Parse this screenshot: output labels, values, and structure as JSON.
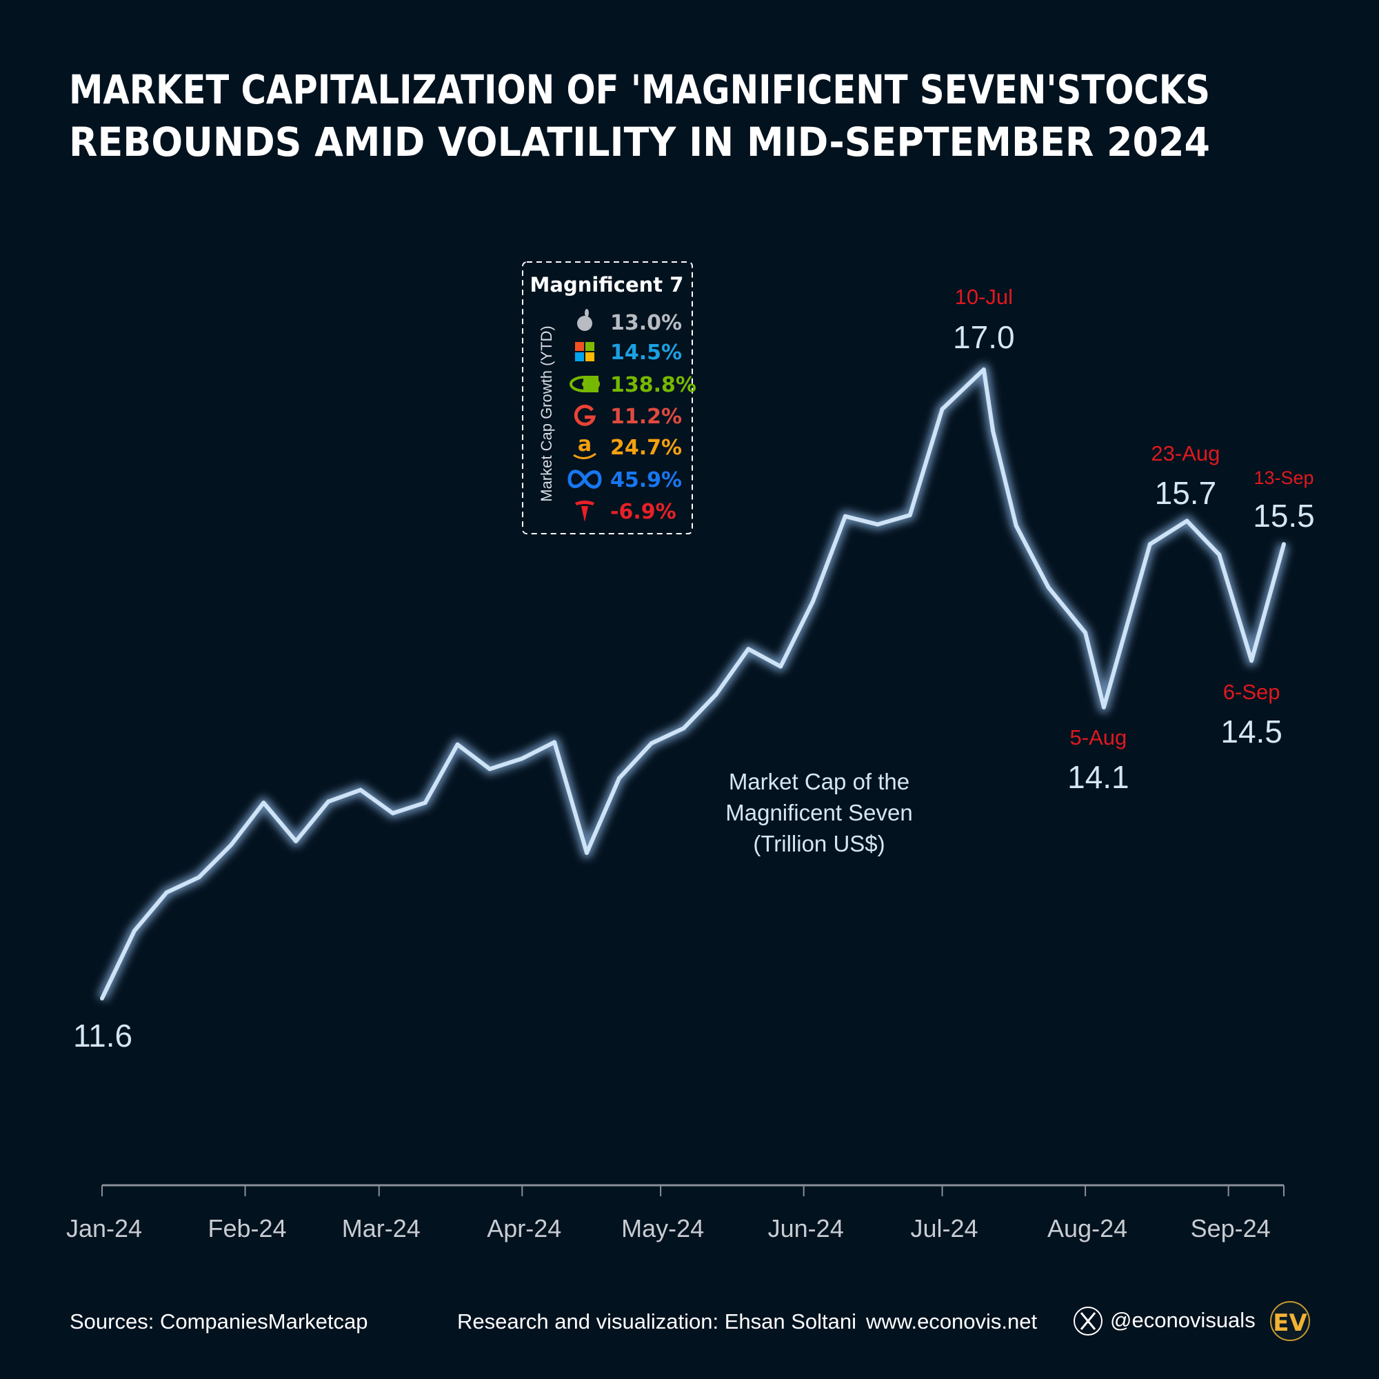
{
  "title_lines": [
    "MARKET CAPITALIZATION OF 'MAGNIFICENT SEVEN'STOCKS",
    "REBOUNDS AMID VOLATILITY IN MID-SEPTEMBER 2024"
  ],
  "colors": {
    "background": "#03121f",
    "line": "#cfe3f7",
    "annotation_date": "#e0191e",
    "annotation_value": "#d6e6f5",
    "axis": "#8a9099"
  },
  "legend": {
    "title": "Magnificent 7",
    "side_label": "Market Cap Growth (YTD)",
    "items": [
      {
        "icon": "apple-icon",
        "value": "13.0%",
        "color": "#b8bcc2"
      },
      {
        "icon": "microsoft-icon",
        "value": "14.5%",
        "color": "#1ba1e2"
      },
      {
        "icon": "nvidia-icon",
        "value": "138.8%",
        "color": "#76b900"
      },
      {
        "icon": "google-icon",
        "value": "11.2%",
        "color": "#e04a3f"
      },
      {
        "icon": "amazon-icon",
        "value": "24.7%",
        "color": "#f5a00f"
      },
      {
        "icon": "meta-icon",
        "value": "45.9%",
        "color": "#1877f2"
      },
      {
        "icon": "tesla-icon",
        "value": "-6.9%",
        "color": "#e82127"
      }
    ]
  },
  "series_label_lines": [
    "Market Cap of the",
    "Magnificent Seven",
    "(Trillion US$)"
  ],
  "chart_data": {
    "type": "line",
    "title": "MARKET CAPITALIZATION OF 'MAGNIFICENT SEVEN'STOCKS REBOUNDS AMID VOLATILITY IN MID-SEPTEMBER 2024",
    "xlabel": "",
    "ylabel": "",
    "x_tick_labels": [
      "Jan-24",
      "Feb-24",
      "Mar-24",
      "Apr-24",
      "May-24",
      "Jun-24",
      "Jul-24",
      "Aug-24",
      "Sep-24"
    ],
    "x_ticks": [
      "2024-01-01",
      "2024-02-01",
      "2024-03-01",
      "2024-04-01",
      "2024-05-01",
      "2024-06-01",
      "2024-07-01",
      "2024-08-01",
      "2024-09-01"
    ],
    "xlim": [
      "2024-01-01",
      "2024-09-13"
    ],
    "ylim": [
      11.6,
      17.0
    ],
    "grid": false,
    "x": [
      "2024-01-01",
      "2024-01-08",
      "2024-01-15",
      "2024-01-22",
      "2024-01-29",
      "2024-02-05",
      "2024-02-12",
      "2024-02-19",
      "2024-02-26",
      "2024-03-04",
      "2024-03-11",
      "2024-03-18",
      "2024-03-25",
      "2024-04-01",
      "2024-04-08",
      "2024-04-15",
      "2024-04-22",
      "2024-04-29",
      "2024-05-06",
      "2024-05-13",
      "2024-05-20",
      "2024-05-27",
      "2024-06-03",
      "2024-06-10",
      "2024-06-17",
      "2024-06-24",
      "2024-07-01",
      "2024-07-10",
      "2024-07-12",
      "2024-07-17",
      "2024-07-24",
      "2024-08-01",
      "2024-08-05",
      "2024-08-15",
      "2024-08-23",
      "2024-08-30",
      "2024-09-06",
      "2024-09-13"
    ],
    "values": [
      11.6,
      12.18,
      12.51,
      12.64,
      12.92,
      13.28,
      12.95,
      13.29,
      13.39,
      13.19,
      13.28,
      13.78,
      13.57,
      13.66,
      13.8,
      12.85,
      13.49,
      13.79,
      13.92,
      14.21,
      14.6,
      14.45,
      15.01,
      15.74,
      15.67,
      15.75,
      16.66,
      17.0,
      16.47,
      15.66,
      15.13,
      14.74,
      14.1,
      15.5,
      15.7,
      15.41,
      14.5,
      15.5
    ],
    "annotations": [
      {
        "date": "2024-01-01",
        "label": "",
        "value": "11.6"
      },
      {
        "date": "2024-07-10",
        "label": "10-Jul",
        "value": "17.0"
      },
      {
        "date": "2024-08-05",
        "label": "5-Aug",
        "value": "14.1"
      },
      {
        "date": "2024-08-23",
        "label": "23-Aug",
        "value": "15.7"
      },
      {
        "date": "2024-09-06",
        "label": "6-Sep",
        "value": "14.5"
      },
      {
        "date": "2024-09-13",
        "label": "13-Sep",
        "value": "15.5"
      }
    ]
  },
  "footer": {
    "source": "Sources: CompaniesMarketcap",
    "credit": "Research and visualization: Ehsan Soltani",
    "website": "www.econovis.net",
    "handle": "@econovisuals",
    "logo": "EV"
  }
}
